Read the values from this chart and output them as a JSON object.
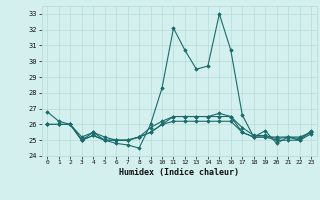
{
  "xlabel": "Humidex (Indice chaleur)",
  "ylabel": "",
  "background_color": "#d4f0ee",
  "grid_color": "#b8ddd8",
  "line_color": "#1a6b6b",
  "xlim": [
    -0.5,
    23.5
  ],
  "ylim": [
    24,
    33.5
  ],
  "yticks": [
    24,
    25,
    26,
    27,
    28,
    29,
    30,
    31,
    32,
    33
  ],
  "xticks": [
    0,
    1,
    2,
    3,
    4,
    5,
    6,
    7,
    8,
    9,
    10,
    11,
    12,
    13,
    14,
    15,
    16,
    17,
    18,
    19,
    20,
    21,
    22,
    23
  ],
  "series": [
    [
      26.8,
      26.2,
      26.0,
      25.0,
      25.5,
      25.0,
      24.8,
      24.7,
      24.5,
      26.0,
      28.3,
      32.1,
      30.7,
      29.5,
      29.7,
      33.0,
      30.7,
      26.6,
      25.2,
      25.6,
      24.8,
      25.2,
      25.0,
      25.6
    ],
    [
      26.0,
      26.0,
      26.0,
      25.0,
      25.3,
      25.0,
      25.0,
      25.0,
      25.2,
      25.5,
      26.0,
      26.5,
      26.5,
      26.5,
      26.5,
      26.5,
      26.5,
      25.5,
      25.2,
      25.2,
      25.2,
      25.2,
      25.2,
      25.5
    ],
    [
      26.0,
      26.0,
      26.0,
      25.0,
      25.3,
      25.0,
      25.0,
      25.0,
      25.2,
      25.5,
      26.0,
      26.2,
      26.2,
      26.2,
      26.2,
      26.2,
      26.2,
      25.5,
      25.2,
      25.2,
      25.0,
      25.0,
      25.0,
      25.4
    ],
    [
      26.0,
      26.0,
      26.0,
      25.2,
      25.5,
      25.2,
      25.0,
      25.0,
      25.2,
      25.8,
      26.2,
      26.5,
      26.5,
      26.5,
      26.5,
      26.7,
      26.5,
      25.8,
      25.3,
      25.3,
      25.1,
      25.2,
      25.1,
      25.5
    ]
  ]
}
